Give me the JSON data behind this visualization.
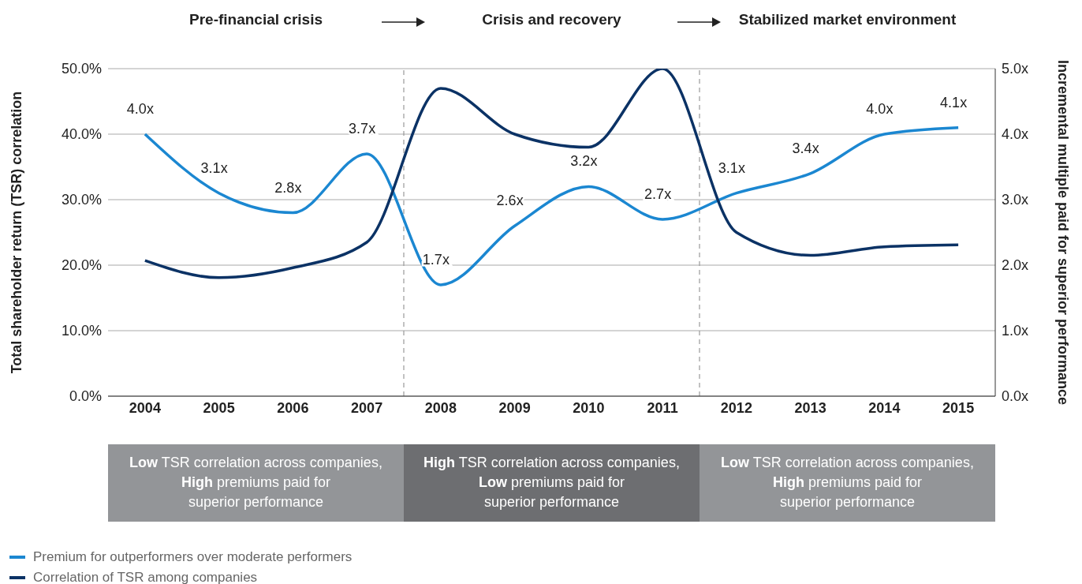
{
  "chart_data": {
    "type": "line",
    "ylabel": "Total shareholder return (TSR) correlation",
    "y2label": "Incremental multiple paid for superior performance",
    "x": [
      2004,
      2005,
      2006,
      2007,
      2008,
      2009,
      2010,
      2011,
      2012,
      2013,
      2014,
      2015
    ],
    "xlim": [
      2003.5,
      2015.5
    ],
    "xticks": [
      2004,
      2005,
      2006,
      2007,
      2008,
      2009,
      2010,
      2011,
      2012,
      2013,
      2014,
      2015
    ],
    "ylim": [
      0,
      50
    ],
    "yticks": [
      {
        "value": 0,
        "label": "0.0%"
      },
      {
        "value": 10,
        "label": "10.0%"
      },
      {
        "value": 20,
        "label": "20.0%"
      },
      {
        "value": 30,
        "label": "30.0%"
      },
      {
        "value": 40,
        "label": "40.0%"
      },
      {
        "value": 50,
        "label": "50.0%"
      }
    ],
    "y2lim": [
      0,
      5
    ],
    "y2ticks": [
      {
        "value": 0,
        "label": "0.0x"
      },
      {
        "value": 1,
        "label": "1.0x"
      },
      {
        "value": 2,
        "label": "2.0x"
      },
      {
        "value": 3,
        "label": "3.0x"
      },
      {
        "value": 4,
        "label": "4.0x"
      },
      {
        "value": 5,
        "label": "5.0x"
      }
    ],
    "series": [
      {
        "name": "Premium for outperformers over moderate performers",
        "color": "#1b87d1",
        "axis": "y2",
        "values": [
          4.0,
          3.1,
          2.8,
          3.7,
          1.7,
          2.6,
          3.2,
          2.7,
          3.1,
          3.4,
          4.0,
          4.1
        ],
        "value_labels": [
          "4.0x",
          "3.1x",
          "2.8x",
          "3.7x",
          "1.7x",
          "2.6x",
          "3.2x",
          "2.7x",
          "3.1x",
          "3.4x",
          "4.0x",
          "4.1x"
        ]
      },
      {
        "name": "Correlation of TSR among companies",
        "color": "#0b3265",
        "values": [
          20.7,
          18.1,
          19.6,
          23.5,
          47.0,
          40.0,
          38.0,
          50.0,
          25.0,
          21.5,
          22.8,
          23.1
        ]
      }
    ],
    "ref_lines": [
      {
        "axis": "x",
        "value": 2007.5,
        "color": "#999999",
        "line_style": "dashed"
      },
      {
        "axis": "x",
        "value": 2011.5,
        "color": "#999999",
        "line_style": "dashed"
      }
    ],
    "annotations": [
      "Pre-financial crisis",
      "Crisis and recovery",
      "Stabilized market environment",
      "Low TSR correlation across companies,\nHigh premiums paid for\nsuperior performance",
      "High TSR correlation across companies,\nLow premiums paid for\nsuperior performance",
      "Low TSR correlation across companies,\nHigh premiums paid for\nsuperior performance"
    ],
    "grid": "y",
    "legend": "bottom left"
  }
}
